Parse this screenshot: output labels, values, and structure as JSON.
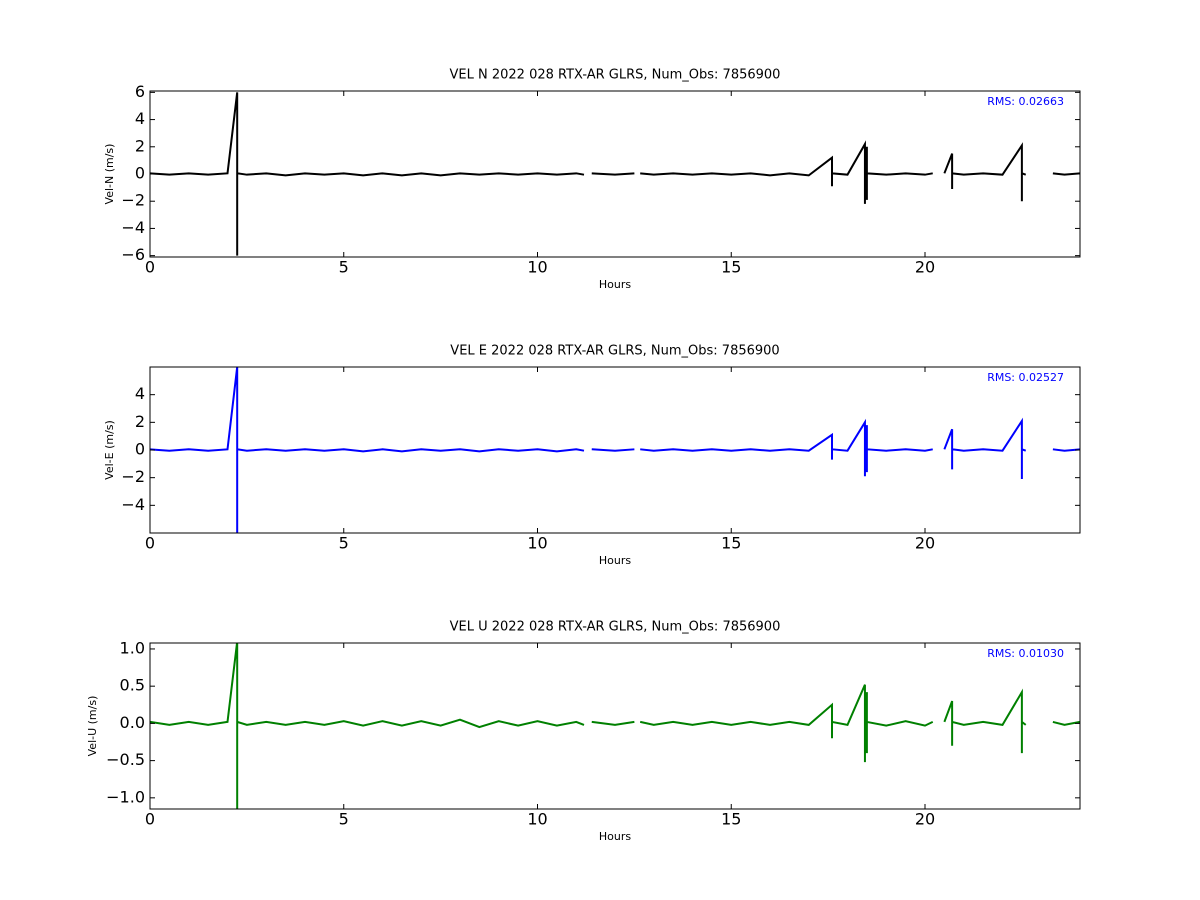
{
  "chart_data": [
    {
      "type": "line",
      "title": "VEL N 2022 028 RTX-AR  GLRS, Num_Obs: 7856900",
      "annotation": "RMS:  0.02663",
      "x_label": "Hours",
      "y_label": "Vel-N (m/s)",
      "color": "#000000",
      "xlim": [
        0,
        24
      ],
      "xticks": [
        0,
        5,
        10,
        15,
        20
      ],
      "ylim": [
        -6.1,
        6.1
      ],
      "yticks": [
        {
          "value": -6,
          "label": "−6"
        },
        {
          "value": -4,
          "label": "−4"
        },
        {
          "value": -2,
          "label": "−2"
        },
        0,
        2,
        4,
        6
      ],
      "x": [
        0,
        0.5,
        1,
        1.5,
        2,
        2.25,
        2.25,
        2.25,
        2.5,
        3,
        3.5,
        4,
        4.5,
        5,
        5.5,
        6,
        6.5,
        7,
        7.5,
        8,
        8.5,
        9,
        9.5,
        10,
        10.5,
        11,
        11.2,
        11.3,
        11.4,
        12,
        12.5,
        12.55,
        12.65,
        13,
        13.5,
        14,
        14.5,
        15,
        15.5,
        16,
        16.5,
        17,
        17.6,
        17.6,
        17.6,
        18,
        18.45,
        18.45,
        18.45,
        18.5,
        18.5,
        18.5,
        19,
        19.5,
        20,
        20.2,
        20.35,
        20.5,
        20.7,
        20.7,
        20.7,
        21,
        21.5,
        22,
        22.5,
        22.5,
        22.5,
        22.6,
        22.9,
        23.3,
        23.6,
        24
      ],
      "values": [
        0.05,
        -0.05,
        0.05,
        -0.05,
        0.05,
        6,
        -6,
        0.05,
        -0.05,
        0.05,
        -0.1,
        0.05,
        -0.05,
        0.05,
        -0.1,
        0.05,
        -0.1,
        0.05,
        -0.1,
        0.05,
        -0.05,
        0.05,
        -0.05,
        0.05,
        -0.05,
        0.05,
        -0.05,
        null,
        0.05,
        -0.05,
        0.05,
        null,
        0.05,
        -0.05,
        0.05,
        -0.05,
        0.05,
        -0.05,
        0.05,
        -0.1,
        0.05,
        -0.1,
        1.2,
        -0.9,
        0.05,
        -0.05,
        2.2,
        -2.2,
        0.05,
        2.0,
        -1.9,
        0.05,
        -0.05,
        0.05,
        -0.05,
        0.05,
        null,
        0.05,
        1.5,
        -1.1,
        0.05,
        -0.05,
        0.05,
        -0.05,
        2.1,
        -2.0,
        0.05,
        -0.05,
        null,
        0.05,
        -0.05,
        0.05
      ]
    },
    {
      "type": "line",
      "title": "VEL E 2022 028 RTX-AR  GLRS, Num_Obs: 7856900",
      "annotation": "RMS:  0.02527",
      "x_label": "Hours",
      "y_label": "Vel-E (m/s)",
      "color": "#0000ff",
      "xlim": [
        0,
        24
      ],
      "xticks": [
        0,
        5,
        10,
        15,
        20
      ],
      "ylim": [
        -6,
        6
      ],
      "yticks": [
        {
          "value": -4,
          "label": "−4"
        },
        {
          "value": -2,
          "label": "−2"
        },
        0,
        2,
        4
      ],
      "x": [
        0,
        0.5,
        1,
        1.5,
        2,
        2.25,
        2.25,
        2.25,
        2.5,
        3,
        3.5,
        4,
        4.5,
        5,
        5.5,
        6,
        6.5,
        7,
        7.5,
        8,
        8.5,
        9,
        9.5,
        10,
        10.5,
        11,
        11.2,
        11.3,
        11.4,
        12,
        12.5,
        12.55,
        12.65,
        13,
        13.5,
        14,
        14.5,
        15,
        15.5,
        16,
        16.5,
        17,
        17.6,
        17.6,
        17.6,
        18,
        18.45,
        18.45,
        18.45,
        18.5,
        18.5,
        18.5,
        19,
        19.5,
        20,
        20.2,
        20.35,
        20.5,
        20.7,
        20.7,
        20.7,
        21,
        21.5,
        22,
        22.5,
        22.5,
        22.5,
        22.6,
        22.9,
        23.3,
        23.6,
        24
      ],
      "values": [
        0.05,
        -0.05,
        0.05,
        -0.05,
        0.05,
        6,
        -6,
        0.05,
        -0.05,
        0.05,
        -0.05,
        0.05,
        -0.05,
        0.05,
        -0.1,
        0.05,
        -0.1,
        0.05,
        -0.05,
        0.05,
        -0.1,
        0.05,
        -0.05,
        0.05,
        -0.1,
        0.05,
        -0.05,
        null,
        0.05,
        -0.05,
        0.05,
        null,
        0.05,
        -0.05,
        0.05,
        -0.05,
        0.05,
        -0.05,
        0.05,
        -0.05,
        0.05,
        -0.05,
        1.1,
        -0.7,
        0.05,
        -0.05,
        2.0,
        -1.9,
        0.05,
        1.8,
        -1.6,
        0.05,
        -0.05,
        0.05,
        -0.05,
        0.05,
        null,
        0.05,
        1.5,
        -1.4,
        0.05,
        -0.05,
        0.05,
        -0.05,
        2.1,
        -2.1,
        0.05,
        -0.05,
        null,
        0.05,
        -0.05,
        0.05
      ]
    },
    {
      "type": "line",
      "title": "VEL U 2022 028 RTX-AR  GLRS, Num_Obs: 7856900",
      "annotation": "RMS:  0.01030",
      "x_label": "Hours",
      "y_label": "Vel-U (m/s)",
      "color": "#008000",
      "xlim": [
        0,
        24
      ],
      "xticks": [
        0,
        5,
        10,
        15,
        20
      ],
      "ylim": [
        -1.15,
        1.08
      ],
      "yticks": [
        {
          "value": -1,
          "label": "−1.0"
        },
        {
          "value": -0.5,
          "label": "−0.5"
        },
        {
          "value": 0,
          "label": "0.0"
        },
        0.5,
        {
          "value": 1,
          "label": "1.0"
        }
      ],
      "x": [
        0,
        0.5,
        1,
        1.5,
        2,
        2.25,
        2.25,
        2.25,
        2.5,
        3,
        3.5,
        4,
        4.5,
        5,
        5.5,
        6,
        6.5,
        7,
        7.5,
        8,
        8.5,
        9,
        9.5,
        10,
        10.5,
        11,
        11.2,
        11.3,
        11.4,
        12,
        12.5,
        12.55,
        12.65,
        13,
        13.5,
        14,
        14.5,
        15,
        15.5,
        16,
        16.5,
        17,
        17.6,
        17.6,
        17.6,
        18,
        18.45,
        18.45,
        18.45,
        18.5,
        18.5,
        18.5,
        19,
        19.5,
        20,
        20.2,
        20.35,
        20.5,
        20.7,
        20.7,
        20.7,
        21,
        21.5,
        22,
        22.5,
        22.5,
        22.5,
        22.6,
        22.9,
        23.3,
        23.6,
        24
      ],
      "values": [
        0.02,
        -0.02,
        0.02,
        -0.02,
        0.02,
        1.1,
        -1.2,
        0.02,
        -0.02,
        0.02,
        -0.02,
        0.02,
        -0.02,
        0.03,
        -0.03,
        0.03,
        -0.03,
        0.03,
        -0.03,
        0.05,
        -0.05,
        0.03,
        -0.03,
        0.03,
        -0.03,
        0.02,
        -0.02,
        null,
        0.02,
        -0.02,
        0.02,
        null,
        0.02,
        -0.02,
        0.02,
        -0.02,
        0.02,
        -0.02,
        0.02,
        -0.02,
        0.02,
        -0.02,
        0.25,
        -0.2,
        0.02,
        -0.02,
        0.52,
        -0.52,
        0.02,
        0.42,
        -0.4,
        0.02,
        -0.03,
        0.03,
        -0.03,
        0.02,
        null,
        0.02,
        0.3,
        -0.3,
        0.02,
        -0.02,
        0.02,
        -0.02,
        0.42,
        -0.4,
        0.02,
        -0.02,
        null,
        0.02,
        -0.02,
        0.02
      ]
    }
  ]
}
